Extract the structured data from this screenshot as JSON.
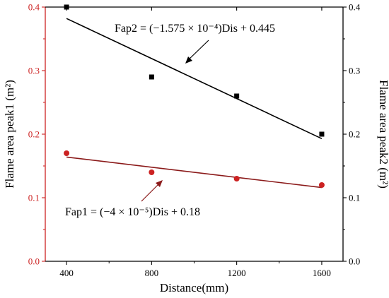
{
  "chart_data": {
    "type": "scatter",
    "xlabel": "Distance(mm)",
    "ylabel_left": "Flame area peak1 (m²)",
    "ylabel_right": "Flame area peak2 (m²)",
    "xlim": [
      300,
      1700
    ],
    "ylim_left": [
      0.0,
      0.4
    ],
    "ylim_right": [
      0.0,
      0.4
    ],
    "x_ticks": [
      "400",
      "800",
      "1200",
      "1600"
    ],
    "y_ticks_left": [
      "0.0",
      "0.1",
      "0.2",
      "0.3",
      "0.4"
    ],
    "y_ticks_right": [
      "0.0",
      "0.1",
      "0.2",
      "0.3",
      "0.4"
    ],
    "series": [
      {
        "axis": "right",
        "marker": "square",
        "color": "#000000",
        "x": [
          400,
          800,
          1200,
          1600
        ],
        "y": [
          0.4,
          0.29,
          0.26,
          0.2
        ],
        "fit": {
          "x": [
            400,
            1600
          ],
          "y": [
            0.382,
            0.193
          ]
        },
        "equation_label": "Fap2 = (−1.575 × 10⁻⁴)Dis + 0.445"
      },
      {
        "axis": "left",
        "marker": "circle",
        "color": "#cc2222",
        "fit_color": "#8b1a1a",
        "x": [
          400,
          800,
          1200,
          1600
        ],
        "y": [
          0.17,
          0.14,
          0.13,
          0.12
        ],
        "fit": {
          "x": [
            400,
            1600
          ],
          "y": [
            0.164,
            0.116
          ]
        },
        "equation_label": "Fap1 = (−4 × 10⁻⁵)Dis + 0.18"
      }
    ]
  },
  "colors": {
    "left_axis": "#cc2222",
    "right_axis": "#000000"
  }
}
